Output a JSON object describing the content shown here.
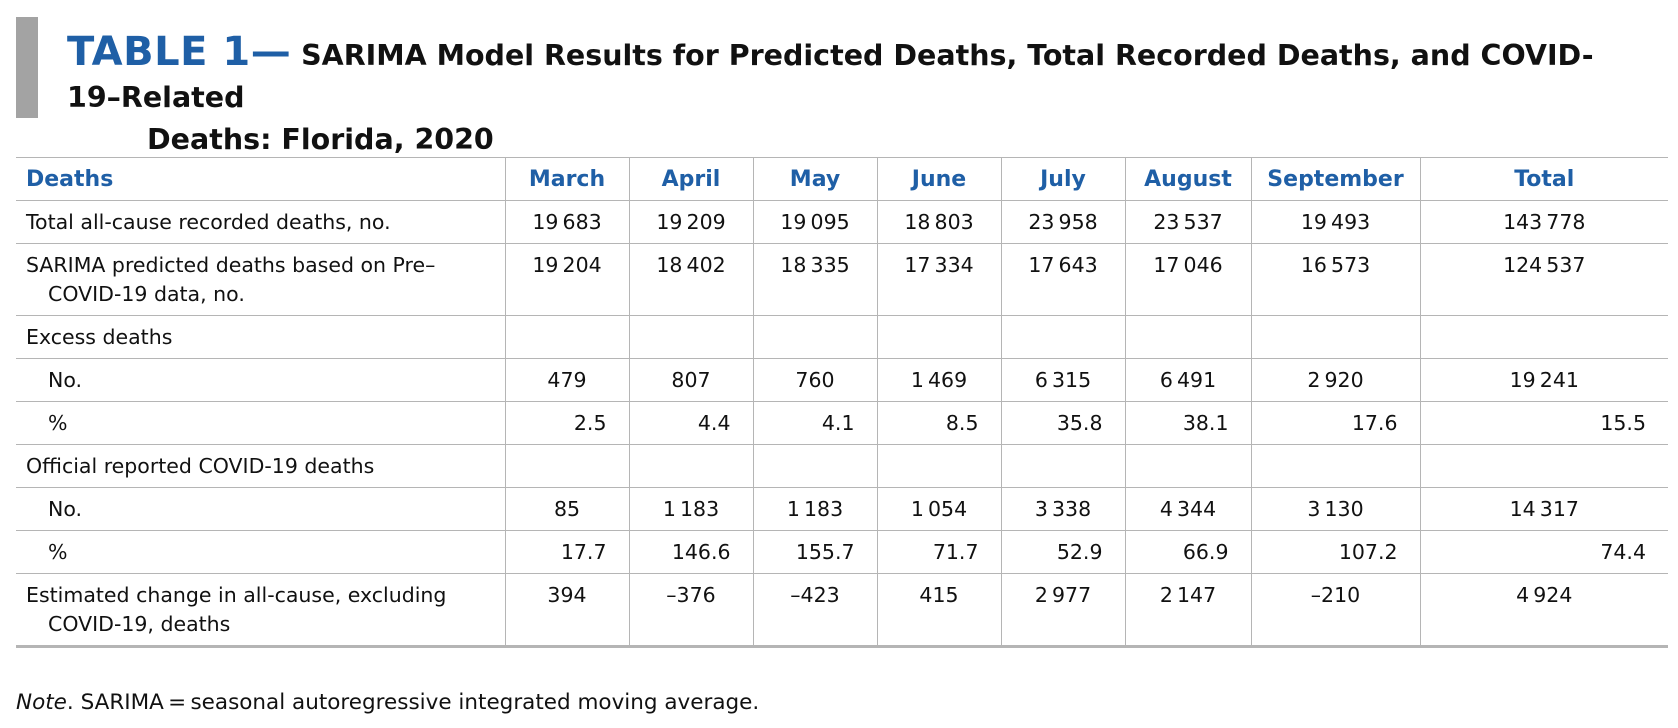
{
  "title": {
    "label": "TABLE 1—",
    "text_line1": "SARIMA Model Results for Predicted Deaths, Total Recorded Deaths, and COVID-19–Related",
    "text_line2": "Deaths: Florida, 2020"
  },
  "table": {
    "headers": [
      "Deaths",
      "March",
      "April",
      "May",
      "June",
      "July",
      "August",
      "September",
      "Total"
    ],
    "rows": [
      {
        "label": "Total all-cause recorded deaths, no.",
        "values": [
          "19 683",
          "19 209",
          "19 095",
          "18 803",
          "23 958",
          "23 537",
          "19 493",
          "143 778"
        ]
      },
      {
        "label": "SARIMA predicted deaths based on Pre–COVID-19 data, no.",
        "values": [
          "19 204",
          "18 402",
          "18 335",
          "17 334",
          "17 643",
          "17 046",
          "16 573",
          "124 537"
        ]
      },
      {
        "label": "Excess deaths",
        "values": [
          "",
          "",
          "",
          "",
          "",
          "",
          "",
          ""
        ]
      },
      {
        "label": "No.",
        "values": [
          "479",
          "807",
          "760",
          "1 469",
          "6 315",
          "6 491",
          "2 920",
          "19 241"
        ]
      },
      {
        "label": "%",
        "values": [
          "2.5",
          "4.4",
          "4.1",
          "8.5",
          "35.8",
          "38.1",
          "17.6",
          "15.5"
        ]
      },
      {
        "label": "Official reported COVID-19 deaths",
        "values": [
          "",
          "",
          "",
          "",
          "",
          "",
          "",
          ""
        ]
      },
      {
        "label": "No.",
        "values": [
          "85",
          "1 183",
          "1 183",
          "1 054",
          "3 338",
          "4 344",
          "3 130",
          "14 317"
        ]
      },
      {
        "label": "%",
        "values": [
          "17.7",
          "146.6",
          "155.7",
          "71.7",
          "52.9",
          "66.9",
          "107.2",
          "74.4"
        ]
      },
      {
        "label": "Estimated change in all-cause, excluding COVID-19, deaths",
        "values": [
          "394",
          "–376",
          "–423",
          "415",
          "2 977",
          "2 147",
          "–210",
          "4 924"
        ]
      }
    ]
  },
  "note": {
    "label": "Note",
    "text": ". SARIMA = seasonal autoregressive integrated moving average."
  },
  "colors": {
    "header_blue": "#1f5fa6",
    "title_bar_gray": "#a3a3a3",
    "rule_gray": "#b5b5b5"
  }
}
